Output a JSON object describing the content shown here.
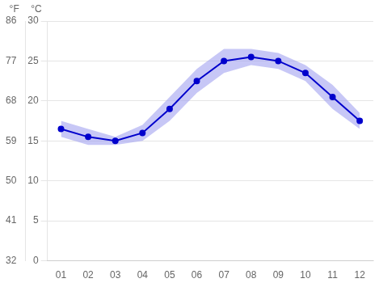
{
  "chart_data": {
    "type": "line",
    "categories": [
      "01",
      "02",
      "03",
      "04",
      "05",
      "06",
      "07",
      "08",
      "09",
      "10",
      "11",
      "12"
    ],
    "series": [
      {
        "type": "band",
        "color": "#9999ee",
        "lower": [
          15.5,
          14.5,
          14.5,
          15.0,
          17.5,
          21.0,
          23.5,
          24.5,
          24.0,
          22.5,
          19.0,
          16.5
        ],
        "upper": [
          17.5,
          16.5,
          15.5,
          17.0,
          20.5,
          24.0,
          26.5,
          26.5,
          26.0,
          24.5,
          22.0,
          18.5
        ]
      },
      {
        "type": "line",
        "color": "#0000cc",
        "marker": "circle",
        "values": [
          16.5,
          15.5,
          15.0,
          16.0,
          19.0,
          22.5,
          25.0,
          25.5,
          25.0,
          23.5,
          20.5,
          17.5
        ]
      }
    ],
    "ylabel": "°C",
    "ylim": [
      0,
      30
    ],
    "yticks": [
      0,
      5,
      10,
      15,
      20,
      25,
      30
    ],
    "y2label": "°F",
    "y2lim": [
      32,
      86
    ],
    "y2ticks": [
      32,
      41,
      50,
      59,
      68,
      77,
      86
    ],
    "grid": true
  }
}
